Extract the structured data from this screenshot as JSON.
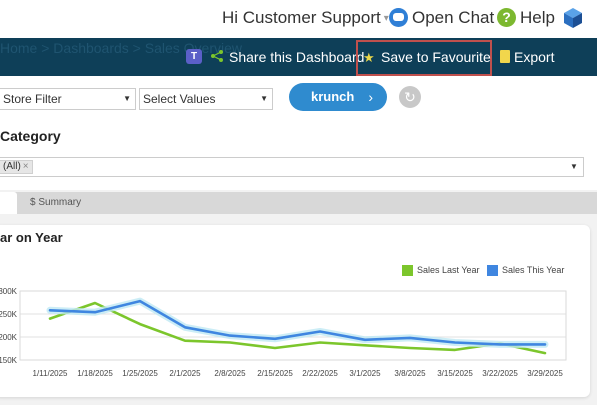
{
  "header": {
    "user_label": "Hi Customer Support",
    "chat_label": "Open Chat",
    "help_label": "Help",
    "help_glyph": "?"
  },
  "nav": {
    "ghost_text": "Home  >  Dashboards  >  Sales Overview",
    "share_label": "Share this Dashboard",
    "favourite_label": "Save to Favourite",
    "export_label": "Export",
    "teams_glyph": "T",
    "accent_star": "#e8d64a"
  },
  "filters": {
    "store_filter": "Store Filter",
    "select_values": "Select Values",
    "krunch_label": "krunch",
    "krunch_chevron": "›",
    "reset_glyph": "↻"
  },
  "category": {
    "title": "Category",
    "tag": "(All)",
    "tag_remove": "×"
  },
  "tabs": {
    "summary_label": "$ Summary"
  },
  "card": {
    "title": "ar on Year"
  },
  "chart_data": {
    "type": "line",
    "categories": [
      "1/11/2025",
      "1/18/2025",
      "1/25/2025",
      "2/1/2025",
      "2/8/2025",
      "2/15/2025",
      "2/22/2025",
      "3/1/2025",
      "3/8/2025",
      "3/15/2025",
      "3/22/2025",
      "3/29/2025"
    ],
    "series": [
      {
        "name": "Sales Last Year",
        "color": "#7cc62c",
        "values": [
          240,
          274,
          228,
          192,
          188,
          176,
          188,
          182,
          176,
          172,
          186,
          165
        ]
      },
      {
        "name": "Sales This Year",
        "color": "#3f86e0",
        "values": [
          258,
          254,
          278,
          221,
          203,
          196,
          212,
          194,
          198,
          188,
          184,
          184
        ]
      }
    ],
    "ylim": [
      150,
      300
    ],
    "yticks": [
      "150K",
      "200K",
      "250K",
      "300K"
    ],
    "grid": true,
    "legend": "top-right",
    "ylabel": "",
    "xlabel": ""
  }
}
